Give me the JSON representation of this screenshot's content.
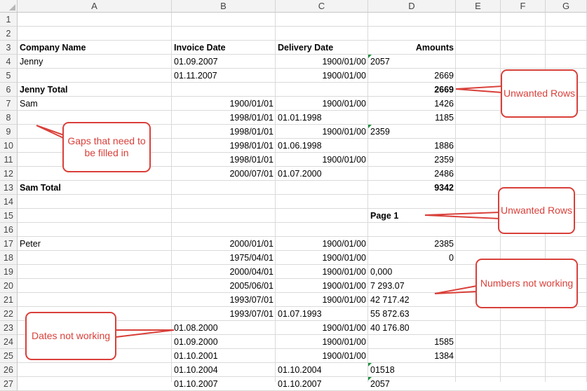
{
  "columns": [
    "A",
    "B",
    "C",
    "D",
    "E",
    "F",
    "G"
  ],
  "rows": [
    {
      "n": "1",
      "A": "",
      "B": "",
      "C": "",
      "D": ""
    },
    {
      "n": "2",
      "A": "",
      "B": "",
      "C": "",
      "D": ""
    },
    {
      "n": "3",
      "A": "Company Name",
      "B": "Invoice Date",
      "C": "Delivery Date",
      "D": "Amounts",
      "bold": true
    },
    {
      "n": "4",
      "A": "Jenny",
      "B": "01.09.2007",
      "C": "1900/01/00",
      "D": "2057",
      "D_text": true
    },
    {
      "n": "5",
      "A": "",
      "B": "01.11.2007",
      "C": "1900/01/00",
      "D": "2669"
    },
    {
      "n": "6",
      "A": "Jenny Total",
      "B": "",
      "C": "",
      "D": "2669",
      "bold": true
    },
    {
      "n": "7",
      "A": "Sam",
      "B": "1900/01/01",
      "C": "1900/01/00",
      "D": "1426"
    },
    {
      "n": "8",
      "A": "",
      "B": "1998/01/01",
      "C": "01.01.1998",
      "D": "1185"
    },
    {
      "n": "9",
      "A": "",
      "B": "1998/01/01",
      "C": "1900/01/00",
      "D": "2359",
      "D_text": true
    },
    {
      "n": "10",
      "A": "",
      "B": "1998/01/01",
      "C": "01.06.1998",
      "D": "1886"
    },
    {
      "n": "11",
      "A": "",
      "B": "1998/01/01",
      "C": "1900/01/00",
      "D": "2359"
    },
    {
      "n": "12",
      "A": "",
      "B": "2000/07/01",
      "C": "01.07.2000",
      "D": "2486"
    },
    {
      "n": "13",
      "A": "Sam   Total",
      "B": "",
      "C": "",
      "D": "9342",
      "bold": true
    },
    {
      "n": "14",
      "A": "",
      "B": "",
      "C": "",
      "D": ""
    },
    {
      "n": "15",
      "A": "",
      "B": "",
      "C": "",
      "D": "Page 1",
      "bold": true,
      "D_left": true
    },
    {
      "n": "16",
      "A": "",
      "B": "",
      "C": "",
      "D": ""
    },
    {
      "n": "17",
      "A": "Peter",
      "B": "2000/01/01",
      "C": "1900/01/00",
      "D": "2385"
    },
    {
      "n": "18",
      "A": "",
      "B": "1975/04/01",
      "C": "1900/01/00",
      "D": "0"
    },
    {
      "n": "19",
      "A": "",
      "B": "2000/04/01",
      "C": "1900/01/00",
      "D": "0,000",
      "D_left": true
    },
    {
      "n": "20",
      "A": "",
      "B": "2005/06/01",
      "C": "1900/01/00",
      "D": "7 293.07",
      "D_left": true
    },
    {
      "n": "21",
      "A": "",
      "B": "1993/07/01",
      "C": "1900/01/00",
      "D": "42 717.42",
      "D_left": true
    },
    {
      "n": "22",
      "A": "",
      "B": "1993/07/01",
      "C": "01.07.1993",
      "D": "55 872.63",
      "D_left": true
    },
    {
      "n": "23",
      "A": "",
      "B": "01.08.2000",
      "C": "1900/01/00",
      "D": "40 176.80",
      "D_left": true
    },
    {
      "n": "24",
      "A": "",
      "B": "01.09.2000",
      "C": "1900/01/00",
      "D": "1585"
    },
    {
      "n": "25",
      "A": "",
      "B": "01.10.2001",
      "C": "1900/01/00",
      "D": "1384"
    },
    {
      "n": "26",
      "A": "",
      "B": "01.10.2004",
      "C": "01.10.2004",
      "D": "01518",
      "D_text": true
    },
    {
      "n": "27",
      "A": "",
      "B": "01.10.2007",
      "C": "01.10.2007",
      "D": "2057",
      "D_text": true
    }
  ],
  "callouts": [
    {
      "id": "unwanted-rows-1",
      "text": "Unwanted Rows"
    },
    {
      "id": "gaps",
      "text": "Gaps that need to be filled in"
    },
    {
      "id": "unwanted-rows-2",
      "text": "Unwanted Rows"
    },
    {
      "id": "numbers",
      "text": "Numbers not working"
    },
    {
      "id": "dates",
      "text": "Dates not working"
    }
  ],
  "colors": {
    "callout": "#d9403a",
    "header_bg": "#f3f3f3",
    "grid": "#dadada",
    "text_flag": "#1f8f3f"
  }
}
